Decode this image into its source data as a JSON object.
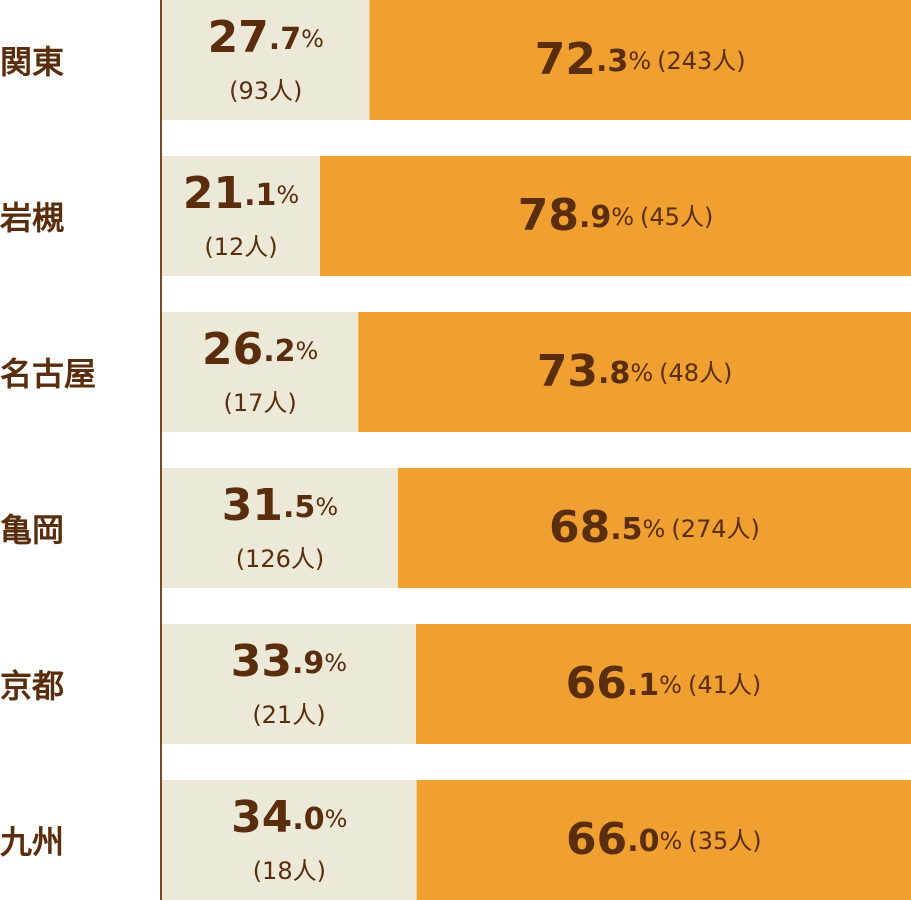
{
  "chart_data": {
    "type": "stacked-bar-100",
    "categories": [
      "関東",
      "岩槻",
      "名古屋",
      "亀岡",
      "京都",
      "九州"
    ],
    "xlim": [
      0,
      100
    ],
    "series": [
      {
        "color": "#ece9d8",
        "values": [
          27.7,
          21.1,
          26.2,
          31.5,
          33.9,
          34.0
        ],
        "value_labels": [
          "27.7%",
          "21.1%",
          "26.2%",
          "31.5%",
          "33.9%",
          "34.0%"
        ],
        "count_labels": [
          "(93人)",
          "(12人)",
          "(17人)",
          "(126人)",
          "(21人)",
          "(18人)"
        ]
      },
      {
        "color": "#f0a030",
        "values": [
          72.3,
          78.9,
          73.8,
          68.5,
          66.1,
          66.0
        ],
        "value_labels": [
          "72.3%",
          "78.9%",
          "73.8%",
          "68.5%",
          "66.1%",
          "66.0%"
        ],
        "count_labels": [
          "(243人)",
          "(45人)",
          "(48人)",
          "(274人)",
          "(41人)",
          "(35人)"
        ]
      }
    ]
  }
}
